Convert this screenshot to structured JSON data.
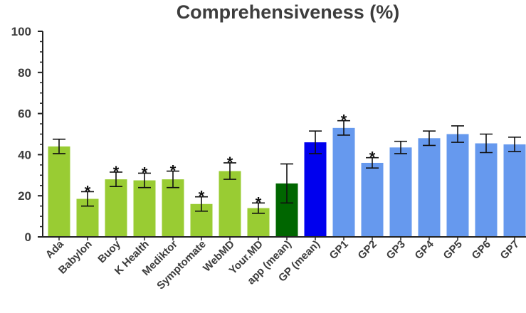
{
  "chart_data": {
    "type": "bar",
    "title": "Comprehensiveness (%)",
    "xlabel": "",
    "ylabel": "",
    "ylim": [
      0,
      100
    ],
    "yticks": [
      0,
      20,
      40,
      60,
      80,
      100
    ],
    "grid": false,
    "categories": [
      "Ada",
      "Babylon",
      "Buoy",
      "K Health",
      "Mediktor",
      "Symptomate",
      "WebMD",
      "Your.MD",
      "app (mean)",
      "GP (mean)",
      "GP1",
      "GP2",
      "GP3",
      "GP4",
      "GP5",
      "GP6",
      "GP7"
    ],
    "values": [
      44,
      18.5,
      28,
      27.5,
      28,
      16,
      32,
      14,
      26,
      46,
      53,
      36,
      43.5,
      48,
      50,
      45.5,
      45
    ],
    "error": [
      3.5,
      3.5,
      3.5,
      3.5,
      4,
      3.5,
      4,
      2.5,
      9.5,
      5.5,
      3.5,
      2.5,
      3,
      3.5,
      4,
      4.5,
      3.5
    ],
    "significance": [
      "",
      "*",
      "*",
      "*",
      "*",
      "*",
      "*",
      "*",
      "",
      "",
      "*",
      "*",
      "",
      "",
      "",
      "",
      ""
    ],
    "bar_colors": [
      "#99cc33",
      "#99cc33",
      "#99cc33",
      "#99cc33",
      "#99cc33",
      "#99cc33",
      "#99cc33",
      "#99cc33",
      "#006600",
      "#0000ee",
      "#6699ee",
      "#6699ee",
      "#6699ee",
      "#6699ee",
      "#6699ee",
      "#6699ee",
      "#6699ee"
    ]
  }
}
